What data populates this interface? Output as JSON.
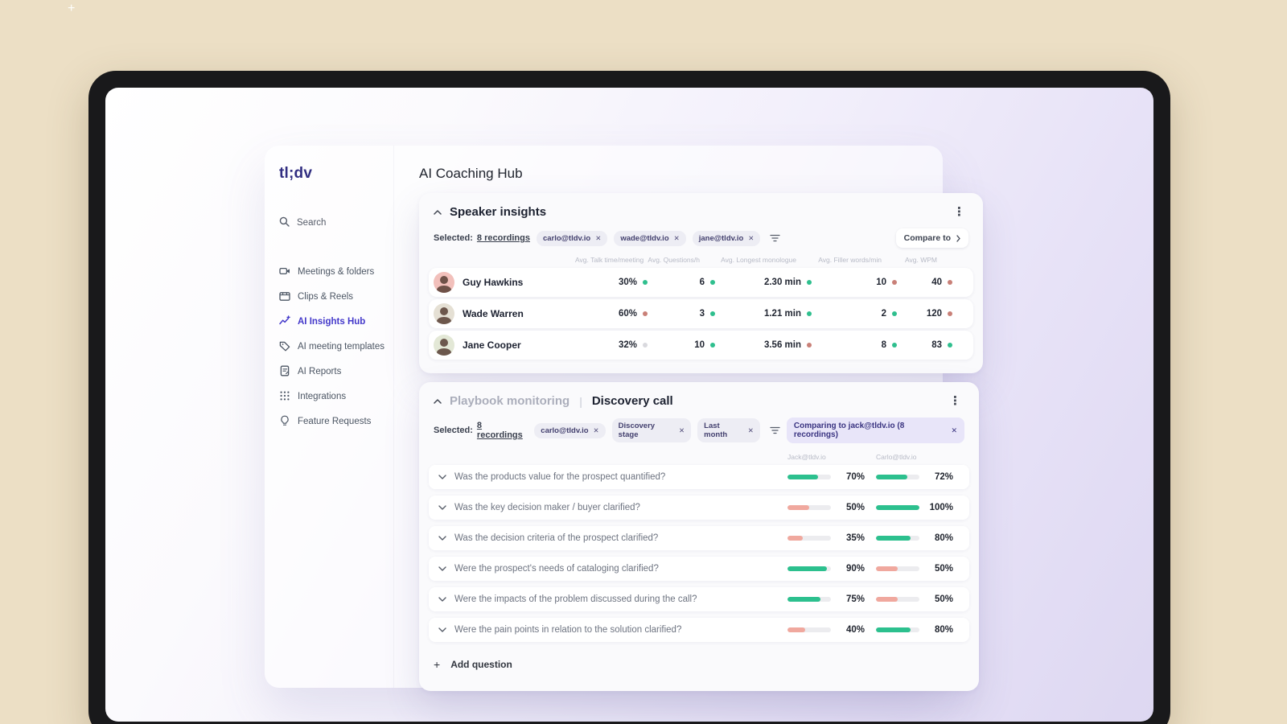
{
  "window": {
    "logo": "tl;dv",
    "page_title": "AI Coaching Hub"
  },
  "sidebar": {
    "search": "Search",
    "items": [
      {
        "label": "Meetings & folders",
        "icon": "video-camera-icon",
        "active": false
      },
      {
        "label": "Clips & Reels",
        "icon": "clips-reels-icon",
        "active": false
      },
      {
        "label": "AI Insights Hub",
        "icon": "insights-chart-icon",
        "active": true
      },
      {
        "label": "AI meeting templates",
        "icon": "template-tag-icon",
        "active": false
      },
      {
        "label": "AI Reports",
        "icon": "report-doc-icon",
        "active": false
      },
      {
        "label": "Integrations",
        "icon": "apps-grid-icon",
        "active": false
      },
      {
        "label": "Feature Requests",
        "icon": "lightbulb-icon",
        "active": false
      }
    ]
  },
  "speaker_insights": {
    "title": "Speaker insights",
    "selected_label": "Selected:",
    "selected_value": "8 recordings",
    "filter_chips": [
      "carlo@tldv.io",
      "wade@tldv.io",
      "jane@tldv.io"
    ],
    "compare_button": "Compare to",
    "columns": [
      "Avg. Talk time/meeting",
      "Avg. Questions/h",
      "Avg. Longest monologue",
      "Avg. Filler words/min",
      "Avg. WPM"
    ],
    "rows": [
      {
        "name": "Guy Hawkins",
        "avatar_color": "#f2c0bb",
        "metrics": [
          {
            "value": "30%",
            "status": "good"
          },
          {
            "value": "6",
            "status": "good"
          },
          {
            "value": "2.30 min",
            "status": "good"
          },
          {
            "value": "10",
            "status": "bad"
          },
          {
            "value": "40",
            "status": "bad"
          }
        ]
      },
      {
        "name": "Wade Warren",
        "avatar_color": "#e5e0d4",
        "metrics": [
          {
            "value": "60%",
            "status": "bad"
          },
          {
            "value": "3",
            "status": "good"
          },
          {
            "value": "1.21 min",
            "status": "good"
          },
          {
            "value": "2",
            "status": "good"
          },
          {
            "value": "120",
            "status": "bad"
          }
        ]
      },
      {
        "name": "Jane Cooper",
        "avatar_color": "#e3e8d6",
        "metrics": [
          {
            "value": "32%",
            "status": "neutral"
          },
          {
            "value": "10",
            "status": "good"
          },
          {
            "value": "3.56 min",
            "status": "bad"
          },
          {
            "value": "8",
            "status": "good"
          },
          {
            "value": "83",
            "status": "good"
          }
        ]
      }
    ]
  },
  "playbook": {
    "title_muted": "Playbook monitoring",
    "title_separator": "|",
    "title": "Discovery call",
    "selected_label": "Selected:",
    "selected_value": "8 recordings",
    "filter_chips": [
      "carlo@tldv.io",
      "Discovery stage",
      "Last month"
    ],
    "comparing_chip": "Comparing to jack@tldv.io (8 recordings)",
    "columns": [
      "Jack@tldv.io",
      "Carlo@tldv.io"
    ],
    "questions": [
      {
        "text": "Was the products value for the prospect quantified?",
        "left": {
          "pct": 70,
          "tone": "green"
        },
        "right": {
          "pct": 72,
          "tone": "green"
        }
      },
      {
        "text": "Was the key decision maker / buyer clarified?",
        "left": {
          "pct": 50,
          "tone": "salmon"
        },
        "right": {
          "pct": 100,
          "tone": "green"
        }
      },
      {
        "text": "Was the decision criteria of the prospect clarified?",
        "left": {
          "pct": 35,
          "tone": "salmon"
        },
        "right": {
          "pct": 80,
          "tone": "green"
        }
      },
      {
        "text": "Were the prospect's needs of cataloging clarified?",
        "left": {
          "pct": 90,
          "tone": "green"
        },
        "right": {
          "pct": 50,
          "tone": "salmon"
        }
      },
      {
        "text": "Were the impacts of the problem discussed during the call?",
        "left": {
          "pct": 75,
          "tone": "green"
        },
        "right": {
          "pct": 50,
          "tone": "salmon"
        }
      },
      {
        "text": "Were the pain points in relation to the solution clarified?",
        "left": {
          "pct": 40,
          "tone": "salmon"
        },
        "right": {
          "pct": 80,
          "tone": "green"
        }
      }
    ],
    "add_question": "Add question"
  },
  "colors": {
    "accent": "#4f46e5",
    "logo": "#312e81",
    "bar_green": "#2cc08e",
    "bar_salmon": "#f0a89e",
    "dot_good": "#2fbf8e",
    "dot_bad": "#c98078",
    "dot_neutral": "#d9d9de"
  }
}
